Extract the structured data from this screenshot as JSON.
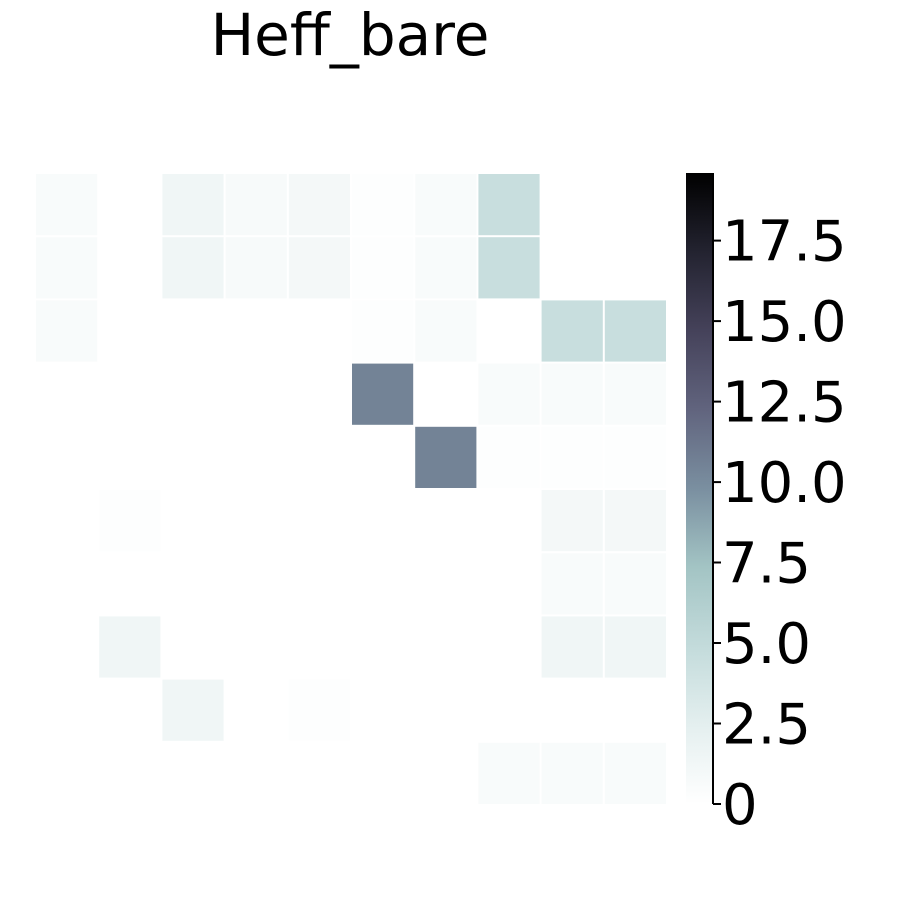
{
  "chart_data": {
    "type": "heatmap",
    "title": "Heff_bare",
    "rows": 10,
    "cols": 10,
    "values": [
      [
        0.6,
        0,
        1.4,
        0.7,
        1.0,
        0.2,
        0.6,
        4.5,
        0,
        0
      ],
      [
        0.6,
        0,
        1.4,
        0.7,
        1.0,
        0.2,
        0.6,
        4.5,
        0,
        0
      ],
      [
        0.6,
        0,
        0,
        0,
        0,
        0.2,
        0.6,
        0,
        4.5,
        4.5
      ],
      [
        0,
        0,
        0,
        0,
        0,
        10.5,
        0,
        0.6,
        0.6,
        0.6
      ],
      [
        0,
        0,
        0,
        0,
        0,
        0,
        10.5,
        0.2,
        0.2,
        0.2
      ],
      [
        0,
        0.2,
        0,
        0,
        0,
        0,
        0,
        0,
        1.0,
        1.0
      ],
      [
        0,
        0,
        0,
        0,
        0,
        0,
        0,
        0,
        0.6,
        0.6
      ],
      [
        0,
        1.4,
        0,
        0,
        0,
        0,
        0,
        0,
        1.4,
        1.4
      ],
      [
        0,
        0,
        1.4,
        0,
        0.2,
        0,
        0,
        0,
        0,
        0
      ],
      [
        0,
        0,
        0,
        0,
        0,
        0,
        0,
        0.6,
        0.6,
        0.6
      ]
    ],
    "colorbar": {
      "vmin": 0,
      "vmax": 19.6,
      "ticks": [
        0,
        2.5,
        5.0,
        7.5,
        10.0,
        12.5,
        15.0,
        17.5
      ],
      "tick_labels": [
        "0",
        "2.5",
        "5.0",
        "7.5",
        "10.0",
        "12.5",
        "15.0",
        "17.5"
      ],
      "colormap": "bone_r"
    },
    "grid": false
  }
}
